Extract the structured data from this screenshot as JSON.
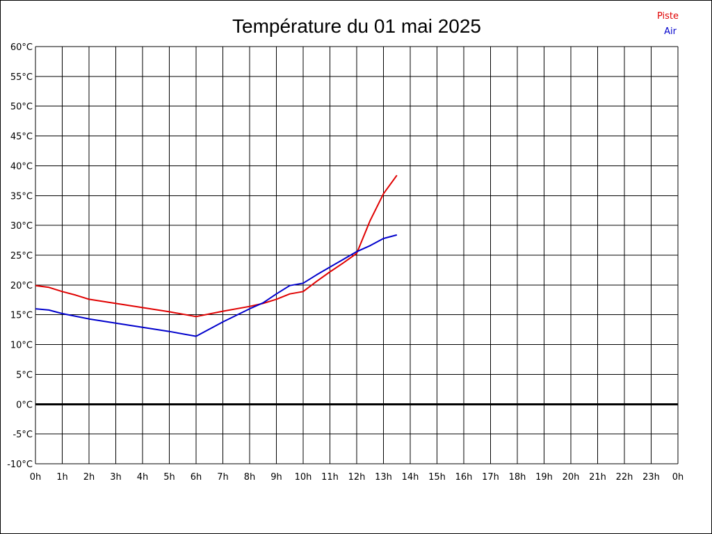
{
  "chart_data": {
    "type": "line",
    "title": "Température du 01 mai 2025",
    "xlabel": "",
    "ylabel": "",
    "x_ticks": [
      "0h",
      "1h",
      "2h",
      "3h",
      "4h",
      "5h",
      "6h",
      "7h",
      "8h",
      "9h",
      "10h",
      "11h",
      "12h",
      "13h",
      "14h",
      "15h",
      "16h",
      "17h",
      "18h",
      "19h",
      "20h",
      "21h",
      "22h",
      "23h",
      "0h"
    ],
    "y_ticks": [
      "60°C",
      "55°C",
      "50°C",
      "45°C",
      "40°C",
      "35°C",
      "30°C",
      "25°C",
      "20°C",
      "15°C",
      "10°C",
      "5°C",
      "0°C",
      "-5°C",
      "-10°C"
    ],
    "xlim": [
      0,
      24
    ],
    "ylim": [
      -10,
      60
    ],
    "grid": true,
    "legend_position": "top-right",
    "zero_line": true,
    "series": [
      {
        "name": "Piste",
        "color": "#e00000",
        "x": [
          0,
          0.5,
          1,
          1.5,
          2,
          3,
          4,
          5,
          6,
          7,
          8,
          8.5,
          9,
          9.5,
          10,
          10.5,
          11,
          11.5,
          12,
          12.5,
          13,
          13.5
        ],
        "y": [
          19.9,
          19.6,
          18.9,
          18.3,
          17.6,
          16.9,
          16.2,
          15.5,
          14.7,
          15.6,
          16.4,
          16.9,
          17.6,
          18.5,
          18.9,
          20.6,
          22.2,
          23.7,
          25.3,
          30.8,
          35.3,
          38.4
        ]
      },
      {
        "name": "Air",
        "color": "#0000cc",
        "x": [
          0,
          0.5,
          1,
          2,
          3,
          4,
          5,
          6,
          7,
          8,
          8.5,
          9,
          9.5,
          10,
          10.5,
          11,
          11.5,
          12,
          12.5,
          13,
          13.5
        ],
        "y": [
          16.0,
          15.8,
          15.2,
          14.3,
          13.6,
          12.9,
          12.2,
          11.4,
          13.8,
          16.0,
          17.0,
          18.5,
          19.9,
          20.3,
          21.7,
          23.0,
          24.3,
          25.6,
          26.6,
          27.8,
          28.4
        ]
      }
    ]
  }
}
